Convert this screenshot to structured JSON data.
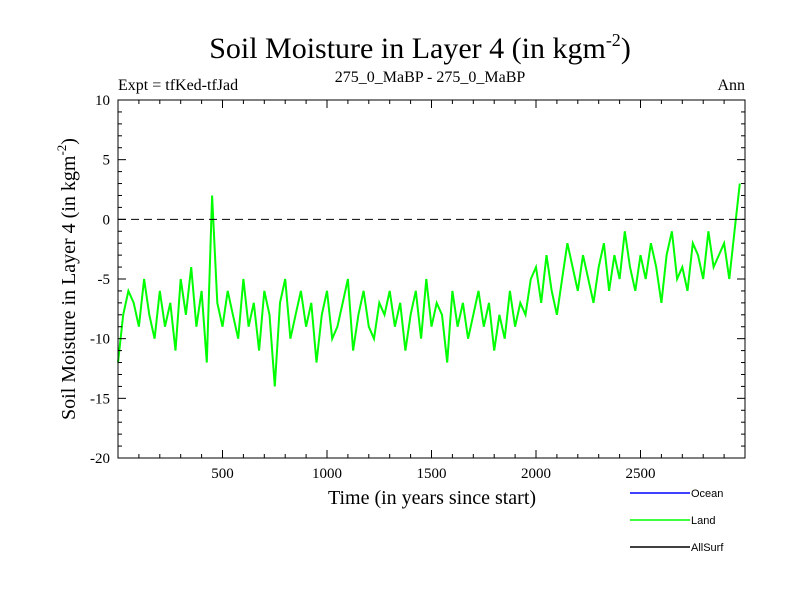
{
  "chart_data": {
    "type": "line",
    "title": "Soil Moisture in Layer 4 (in kgm",
    "title_superscript": "-2",
    "title_suffix": ")",
    "subtitle_left": "Expt = tfKed-tfJad",
    "subtitle_center": "275_0_MaBP - 275_0_MaBP",
    "subtitle_right": "Ann",
    "xlabel": "Time (in years since start)",
    "ylabel": "Soil Moisture in Layer 4 (in kgm",
    "ylabel_superscript": "-2",
    "ylabel_suffix": ")",
    "xlim": [
      0,
      3000
    ],
    "ylim": [
      -20,
      10
    ],
    "x_ticks": [
      500,
      1000,
      1500,
      2000,
      2500
    ],
    "x_tick_labels": [
      "500",
      "1000",
      "1500",
      "2000",
      "2500"
    ],
    "y_ticks": [
      -20,
      -15,
      -10,
      -5,
      0,
      5,
      10
    ],
    "y_tick_labels": [
      "-20",
      "-15",
      "-10",
      "-5",
      "0",
      "5",
      "10"
    ],
    "reference_line": {
      "y": 0,
      "style": "dashed"
    },
    "grid": false,
    "legend_position": "bottom-right",
    "series": [
      {
        "name": "Land",
        "color": "#00ff00",
        "description_of_trend": "annual noisy series",
        "x_step": 25,
        "x_start": 0,
        "values": [
          -12,
          -8,
          -6,
          -7,
          -9,
          -5,
          -8,
          -10,
          -6,
          -9,
          -7,
          -11,
          -5,
          -8,
          -4,
          -9,
          -6,
          -12,
          2,
          -7,
          -9,
          -6,
          -8,
          -10,
          -5,
          -9,
          -7,
          -11,
          -6,
          -8,
          -14,
          -7,
          -5,
          -10,
          -8,
          -6,
          -9,
          -7,
          -12,
          -8,
          -6,
          -10,
          -9,
          -7,
          -5,
          -11,
          -8,
          -6,
          -9,
          -10,
          -7,
          -8,
          -6,
          -9,
          -7,
          -11,
          -8,
          -6,
          -10,
          -5,
          -9,
          -7,
          -8,
          -12,
          -6,
          -9,
          -7,
          -10,
          -8,
          -6,
          -9,
          -7,
          -11,
          -8,
          -10,
          -6,
          -9,
          -7,
          -8,
          -5,
          -4,
          -7,
          -3,
          -6,
          -8,
          -5,
          -2,
          -4,
          -6,
          -3,
          -5,
          -7,
          -4,
          -2,
          -6,
          -3,
          -5,
          -1,
          -4,
          -6,
          -3,
          -5,
          -2,
          -4,
          -7,
          -3,
          -1,
          -5,
          -4,
          -6,
          -2,
          -3,
          -5,
          -1,
          -4,
          -3,
          -2,
          -5,
          -1,
          3
        ]
      },
      {
        "name": "Ocean",
        "color": "#0000ff",
        "values": []
      },
      {
        "name": "AllSurf",
        "color": "#000000",
        "values": []
      }
    ]
  }
}
